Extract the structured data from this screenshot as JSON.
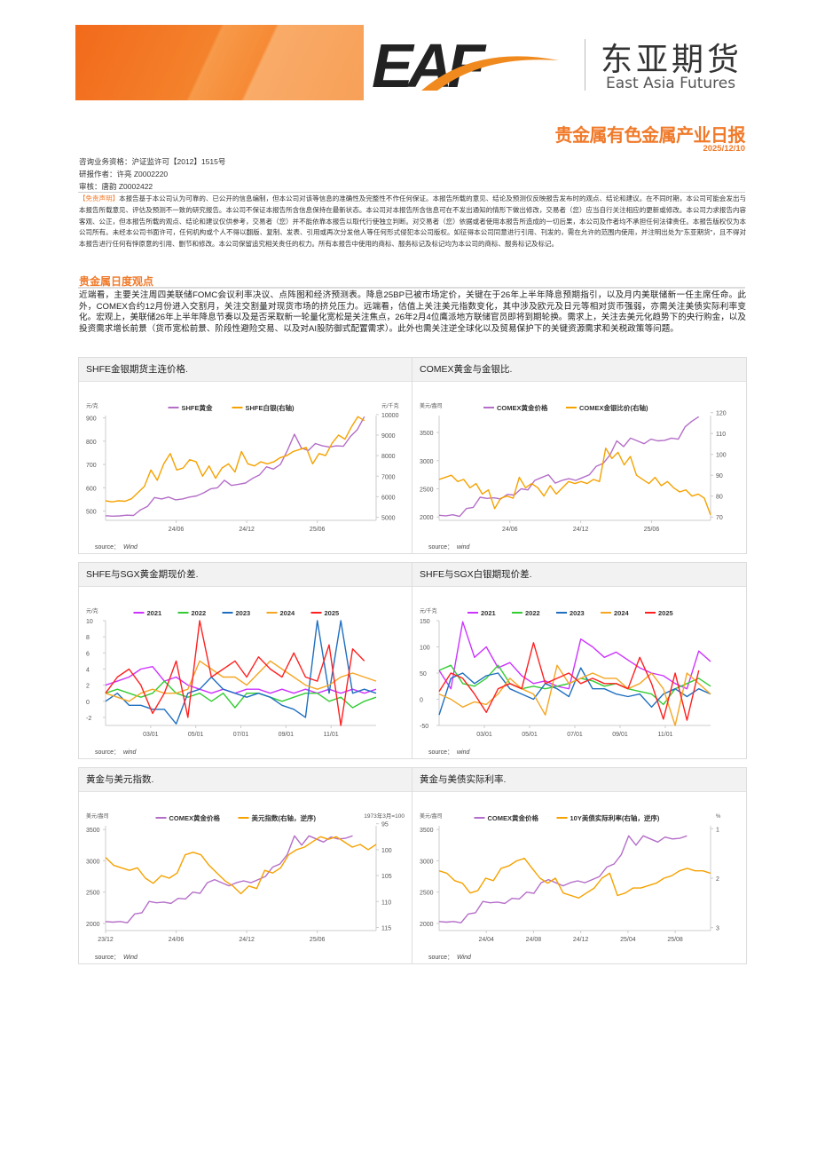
{
  "logo": {
    "mark": "EAF",
    "cn": "东亚期货",
    "en": "East Asia Futures"
  },
  "report": {
    "title": "贵金属有色金属产业日报",
    "date": "2025/12/10"
  },
  "meta": {
    "license": "咨询业务资格：沪证监许可【2012】1515号",
    "author": "研报作者：许亮 Z0002220",
    "reviewer": "审核：唐韵 Z0002422"
  },
  "disclaimer": {
    "tag": "【免责声明】",
    "text": "本报告基于本公司认为可靠的、已公开的信息编制，但本公司对该等信息的准确性及完整性不作任何保证。本报告所载的意见、结论及预测仅反映报告发布时的观点、结论和建议。在不同时期，本公司可能会发出与本报告所载意见、评估及预测不一致的研究报告。本公司不保证本报告所含信息保持在最新状态。本公司对本报告所含信息可在不发出通知的情形下做出修改，交易者（您）应当自行关注相应的更新或修改。本公司力求报告内容客观、公正，但本报告所载的观点、结论和建议仅供参考，交易者（您）并不能依靠本报告以取代行使独立判断。对交易者（您）依据或者使用本报告所造成的一切后果，本公司及作者均不承担任何法律责任。本报告版权仅为本公司所有。未经本公司书面许可，任何机构或个人不得以翻版、复制、发表、引用或再次分发他人等任何形式侵犯本公司版权。如征得本公司同意进行引用、刊发的，需在允许的范围内使用，并注明出处为“东亚期货”，且不得对本报告进行任何有悖原意的引用、删节和修改。本公司保留追究相关责任的权力。所有本报告中使用的商标、服务标记及标记均为本公司的商标、服务标记及标记。"
  },
  "section": {
    "title": "贵金属日度观点",
    "body": "近端看，主要关注周四美联储FOMC会议利率决议、点阵图和经济预测表。降息25BP已被市场定价，关键在于26年上半年降息预期指引，以及月内美联储新一任主席任命。此外，COMEX合约12月份进入交割月，关注交割量对现货市场的挤兑压力。远端看，估值上关注美元指数变化，其中涉及欧元及日元等相对货币强弱，亦需关注美债实际利率变化。宏观上，美联储26年上半年降息节奏以及是否采取新一轮量化宽松是关注焦点，26年2月4位鹰派地方联储官员即将到期轮换。需求上，关注去美元化趋势下的央行购金，以及投资需求增长前景（货币宽松前景、阶段性避险交易、以及对AI股防御式配置需求）。此外也需关注逆全球化以及贸易保护下的关键资源需求和关税政策等问题。"
  },
  "colors": {
    "accent": "#f07a2a",
    "gold_line": "#b46ec8",
    "silver_line": "#f5a200",
    "y2021": "#cc33ff",
    "y2022": "#33cc33",
    "y2023": "#1f6fc0",
    "y2024": "#f5a623",
    "y2025": "#ff2020"
  },
  "chart_data": [
    {
      "type": "line",
      "title": "SHFE金银期货主连价格.",
      "source_label": "source：",
      "source": "Wind",
      "x_kind": "date",
      "x_min": "2023-12",
      "x_max": "2025-11",
      "x_ticks": [
        "24/06",
        "24/12",
        "25/06"
      ],
      "y_left": {
        "unit": "元/克",
        "ylim": [
          460,
          910
        ],
        "ticks": [
          500,
          600,
          700,
          800,
          900
        ]
      },
      "y_right": {
        "unit": "元/千克",
        "ylim": [
          4850,
          9950
        ],
        "ticks": [
          5000,
          6000,
          7000,
          8000,
          9000,
          10000
        ]
      },
      "series": [
        {
          "name": "SHFE黄金",
          "axis": "left",
          "color": "#b46ec8",
          "x_start": "2023-12",
          "x_end": "2025-10",
          "values": [
            480,
            478,
            479,
            482,
            481,
            505,
            520,
            558,
            552,
            560,
            548,
            552,
            560,
            565,
            578,
            595,
            600,
            632,
            610,
            615,
            620,
            640,
            655,
            690,
            680,
            700,
            760,
            830,
            770,
            760,
            790,
            780,
            775,
            780,
            778,
            820,
            850,
            905
          ]
        },
        {
          "name": "SHFE白银(右轴)",
          "axis": "right",
          "color": "#f5a200",
          "x_start": "2023-12",
          "x_end": "2025-10",
          "values": [
            5800,
            5750,
            5800,
            5780,
            5900,
            6200,
            6500,
            7300,
            6800,
            7600,
            8100,
            7300,
            7400,
            7800,
            7700,
            7000,
            7500,
            6900,
            7400,
            7600,
            7200,
            8200,
            7600,
            7500,
            7700,
            7600,
            7700,
            7900,
            8000,
            8200,
            8300,
            8400,
            7600,
            8100,
            8000,
            8600,
            9000,
            8800,
            9400,
            9900,
            9700
          ]
        }
      ]
    },
    {
      "type": "line",
      "title": "COMEX黄金与金银比.",
      "source_label": "source：",
      "source": "wind",
      "x_kind": "date",
      "x_min": "2023-12",
      "x_max": "2025-11",
      "x_ticks": [
        "24/06",
        "24/12",
        "25/06"
      ],
      "y_left": {
        "unit": "美元/盎司",
        "ylim": [
          1940,
          3800
        ],
        "ticks": [
          2000,
          2500,
          3000,
          3500
        ]
      },
      "y_right": {
        "unit": "",
        "ylim": [
          68.4,
          118.6
        ],
        "ticks": [
          70,
          80,
          90,
          100,
          110,
          120
        ]
      },
      "series": [
        {
          "name": "COMEX黄金价格",
          "axis": "left",
          "color": "#b46ec8",
          "x_start": "2023-12",
          "x_end": "2025-10",
          "values": [
            2030,
            2020,
            2040,
            2010,
            2150,
            2170,
            2350,
            2330,
            2340,
            2320,
            2400,
            2390,
            2500,
            2480,
            2650,
            2700,
            2750,
            2600,
            2650,
            2680,
            2650,
            2700,
            2750,
            2900,
            2950,
            3100,
            3350,
            3250,
            3400,
            3350,
            3300,
            3380,
            3350,
            3360,
            3400,
            3380,
            3600,
            3700,
            3780
          ]
        },
        {
          "name": "COMEX金银比价(右轴)",
          "axis": "right",
          "color": "#f5a200",
          "x_start": "2023-12",
          "x_end": "2025-11",
          "values": [
            88,
            89,
            90,
            87,
            88,
            84,
            86,
            81,
            83,
            74,
            79,
            80,
            79,
            89,
            84,
            86,
            84,
            80,
            85,
            81,
            84,
            87,
            86,
            87,
            86,
            88,
            87,
            103,
            98,
            101,
            95,
            99,
            90,
            88,
            86,
            89,
            85,
            87,
            84,
            82,
            83,
            80,
            81,
            79,
            71
          ]
        }
      ]
    },
    {
      "type": "line",
      "title": "SHFE与SGX黄金期现价差.",
      "source_label": "source：",
      "source": "wind",
      "x_kind": "season",
      "x_ticks": [
        "03/01",
        "05/01",
        "07/01",
        "09/01",
        "11/01"
      ],
      "y_left": {
        "unit": "元/克",
        "ylim": [
          -3,
          10
        ],
        "ticks": [
          -2,
          0,
          2,
          4,
          6,
          8,
          10
        ]
      },
      "series": [
        {
          "name": "2021",
          "axis": "left",
          "color": "#cc33ff",
          "values": [
            2,
            2.5,
            3,
            4,
            4.3,
            2.5,
            3,
            2,
            1.5,
            1,
            1.5,
            1,
            1.5,
            1.5,
            1,
            1.5,
            1,
            1.5,
            1,
            1.5,
            1,
            1.5,
            1,
            1.5
          ]
        },
        {
          "name": "2022",
          "axis": "left",
          "color": "#33cc33",
          "values": [
            1,
            1.5,
            1,
            0.5,
            1,
            2.5,
            1,
            0.5,
            1,
            0,
            1,
            -0.8,
            1,
            1,
            0.5,
            0,
            0.5,
            1,
            1,
            0,
            0.5,
            -0.8,
            0,
            0.5
          ]
        },
        {
          "name": "2023",
          "axis": "left",
          "color": "#1f6fc0",
          "values": [
            0,
            1,
            -0.5,
            -0.5,
            -1,
            -1,
            -2.8,
            1,
            1.5,
            3,
            1.5,
            1,
            0.5,
            1,
            0.5,
            -0.5,
            -1,
            -2,
            10,
            1,
            10,
            1,
            1.5,
            1
          ]
        },
        {
          "name": "2024",
          "axis": "left",
          "color": "#f5a623",
          "values": [
            1,
            0.5,
            0,
            1,
            1.5,
            1,
            1,
            1.5,
            5,
            4,
            3,
            3,
            2,
            3.5,
            5,
            4,
            3,
            2,
            1.5,
            2,
            3,
            3.5,
            3,
            2.5
          ]
        },
        {
          "name": "2025",
          "axis": "left",
          "color": "#ff2020",
          "values": [
            1,
            3,
            4,
            2,
            -1.5,
            1,
            5,
            -2,
            10,
            3,
            4,
            5,
            3,
            5.5,
            4,
            3,
            6,
            3,
            2.5,
            7,
            -3,
            6.5,
            5,
            null
          ]
        }
      ]
    },
    {
      "type": "line",
      "title": "SHFE与SGX白银期现价差.",
      "source_label": "source：",
      "source": "wind",
      "x_kind": "season",
      "x_ticks": [
        "03/01",
        "05/01",
        "07/01",
        "09/01",
        "11/01"
      ],
      "y_left": {
        "unit": "元/千克",
        "ylim": [
          -50,
          150
        ],
        "ticks": [
          -50,
          0,
          50,
          100,
          150
        ]
      },
      "series": [
        {
          "name": "2021",
          "axis": "left",
          "color": "#cc33ff",
          "values": [
            55,
            20,
            148,
            80,
            100,
            60,
            70,
            45,
            30,
            35,
            25,
            20,
            115,
            100,
            80,
            90,
            75,
            60,
            50,
            45,
            30,
            20,
            92,
            72
          ]
        },
        {
          "name": "2022",
          "axis": "left",
          "color": "#33cc33",
          "values": [
            55,
            65,
            30,
            25,
            40,
            65,
            30,
            20,
            25,
            20,
            25,
            30,
            40,
            35,
            25,
            30,
            20,
            15,
            10,
            -10,
            20,
            30,
            40,
            25
          ]
        },
        {
          "name": "2023",
          "axis": "left",
          "color": "#1f6fc0",
          "values": [
            -30,
            40,
            50,
            30,
            45,
            50,
            20,
            10,
            0,
            30,
            20,
            5,
            60,
            20,
            20,
            10,
            5,
            10,
            -15,
            10,
            20,
            5,
            20,
            10
          ]
        },
        {
          "name": "2024",
          "axis": "left",
          "color": "#f5a623",
          "values": [
            10,
            0,
            -15,
            -5,
            -10,
            10,
            40,
            20,
            10,
            -30,
            65,
            30,
            40,
            50,
            40,
            40,
            20,
            30,
            50,
            20,
            -50,
            50,
            30,
            10
          ]
        },
        {
          "name": "2025",
          "axis": "left",
          "color": "#ff2020",
          "values": [
            15,
            50,
            40,
            10,
            -25,
            20,
            30,
            20,
            108,
            30,
            40,
            50,
            30,
            40,
            30,
            30,
            20,
            80,
            30,
            -38,
            50,
            -40,
            55,
            null
          ]
        }
      ]
    },
    {
      "type": "line",
      "title": "黄金与美元指数.",
      "source_label": "source：",
      "source": "Wind",
      "x_kind": "date",
      "x_min": "2023-12",
      "x_max": "2025-11",
      "x_ticks": [
        "23/12",
        "24/06",
        "24/12",
        "25/06"
      ],
      "corner_note": "1973年3月=100",
      "y_left": {
        "unit": "美元/盎司",
        "ylim": [
          1885,
          3560
        ],
        "ticks": [
          2000,
          2500,
          3000,
          3500
        ]
      },
      "y_right": {
        "unit": "",
        "ylim": [
          95.4,
          115.6
        ],
        "inverted": true,
        "ticks": [
          95,
          100,
          105,
          110,
          115
        ]
      },
      "series": [
        {
          "name": "COMEX黄金价格",
          "axis": "left",
          "color": "#b46ec8",
          "x_start": "2023-12",
          "x_end": "2025-09",
          "values": [
            2030,
            2020,
            2030,
            2010,
            2150,
            2170,
            2350,
            2330,
            2340,
            2320,
            2400,
            2390,
            2500,
            2480,
            2650,
            2700,
            2650,
            2600,
            2650,
            2680,
            2650,
            2700,
            2750,
            2900,
            2950,
            3100,
            3400,
            3250,
            3400,
            3350,
            3300,
            3380,
            3350,
            3360,
            3400
          ]
        },
        {
          "name": "美元指数(右轴，逆序)",
          "axis": "right",
          "color": "#f5a200",
          "x_start": "2023-12",
          "x_end": "2025-11",
          "values": [
            101.5,
            103,
            103.5,
            104,
            103.5,
            105.5,
            106.5,
            105,
            105.5,
            104.5,
            101,
            100.5,
            101,
            103,
            104.5,
            106,
            107,
            108.5,
            107,
            107.5,
            104,
            104.5,
            103.5,
            101,
            100,
            99.5,
            98.5,
            97.5,
            98,
            97.5,
            98.5,
            99.5,
            99,
            100,
            99
          ]
        }
      ]
    },
    {
      "type": "line",
      "title": "黄金与美债实际利率.",
      "source_label": "source：",
      "source": "Wind",
      "x_kind": "date",
      "x_min": "2023-12",
      "x_max": "2025-11",
      "x_ticks": [
        "24/04",
        "24/08",
        "24/12",
        "25/04",
        "25/08"
      ],
      "y_left": {
        "unit": "美元/盎司",
        "ylim": [
          1885,
          3560
        ],
        "ticks": [
          2000,
          2500,
          3000,
          3500
        ]
      },
      "y_right": {
        "unit": "%",
        "ylim": [
          0.94,
          3.06
        ],
        "inverted": true,
        "ticks": [
          1,
          2,
          3
        ]
      },
      "series": [
        {
          "name": "COMEX黄金价格",
          "axis": "left",
          "color": "#b46ec8",
          "x_start": "2023-12",
          "x_end": "2025-09",
          "values": [
            2030,
            2020,
            2030,
            2010,
            2150,
            2170,
            2350,
            2330,
            2340,
            2320,
            2400,
            2390,
            2500,
            2480,
            2650,
            2700,
            2650,
            2600,
            2650,
            2680,
            2650,
            2700,
            2750,
            2900,
            2950,
            3100,
            3400,
            3250,
            3400,
            3350,
            3300,
            3380,
            3350,
            3360,
            3400
          ]
        },
        {
          "name": "10Y美债实际利率(右轴，逆序)",
          "axis": "right",
          "color": "#f5a200",
          "x_start": "2023-12",
          "x_end": "2025-11",
          "values": [
            1.85,
            1.9,
            2.05,
            2.1,
            2.3,
            2.25,
            2.0,
            2.05,
            1.8,
            1.75,
            1.65,
            1.6,
            1.8,
            2.0,
            2.1,
            2.0,
            2.3,
            2.35,
            2.4,
            2.3,
            2.2,
            2.0,
            1.9,
            2.35,
            2.3,
            2.2,
            2.2,
            2.15,
            2.1,
            2.0,
            1.95,
            1.85,
            1.8,
            1.85,
            1.85,
            1.9
          ]
        }
      ]
    }
  ]
}
